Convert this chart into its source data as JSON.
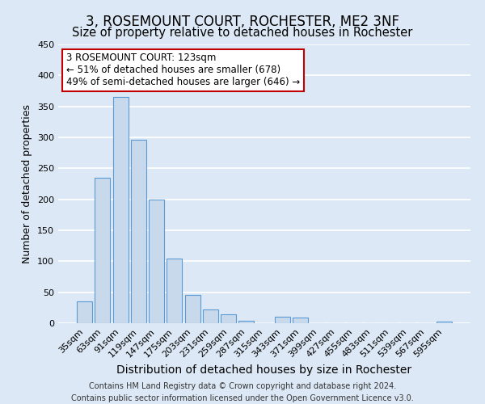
{
  "title": "3, ROSEMOUNT COURT, ROCHESTER, ME2 3NF",
  "subtitle": "Size of property relative to detached houses in Rochester",
  "xlabel": "Distribution of detached houses by size in Rochester",
  "ylabel": "Number of detached properties",
  "bar_color": "#c9d9ec",
  "bar_edge_color": "#5b9bd5",
  "categories": [
    "35sqm",
    "63sqm",
    "91sqm",
    "119sqm",
    "147sqm",
    "175sqm",
    "203sqm",
    "231sqm",
    "259sqm",
    "287sqm",
    "315sqm",
    "343sqm",
    "371sqm",
    "399sqm",
    "427sqm",
    "455sqm",
    "483sqm",
    "511sqm",
    "539sqm",
    "567sqm",
    "595sqm"
  ],
  "values": [
    35,
    235,
    365,
    296,
    199,
    105,
    46,
    22,
    15,
    4,
    0,
    10,
    9,
    0,
    0,
    0,
    0,
    0,
    0,
    0,
    2
  ],
  "ylim": [
    0,
    450
  ],
  "yticks": [
    0,
    50,
    100,
    150,
    200,
    250,
    300,
    350,
    400,
    450
  ],
  "annotation_title": "3 ROSEMOUNT COURT: 123sqm",
  "annotation_line1": "← 51% of detached houses are smaller (678)",
  "annotation_line2": "49% of semi-detached houses are larger (646) →",
  "annotation_box_color": "white",
  "annotation_box_edge_color": "#c00000",
  "footer_line1": "Contains HM Land Registry data © Crown copyright and database right 2024.",
  "footer_line2": "Contains public sector information licensed under the Open Government Licence v3.0.",
  "background_color": "#dce8f5",
  "plot_background_color": "#dce8f5",
  "grid_color": "white",
  "title_fontsize": 12,
  "subtitle_fontsize": 10.5,
  "xlabel_fontsize": 10,
  "ylabel_fontsize": 9,
  "tick_fontsize": 8,
  "footer_fontsize": 7,
  "annotation_title_fontsize": 9,
  "annotation_line_fontsize": 8.5
}
